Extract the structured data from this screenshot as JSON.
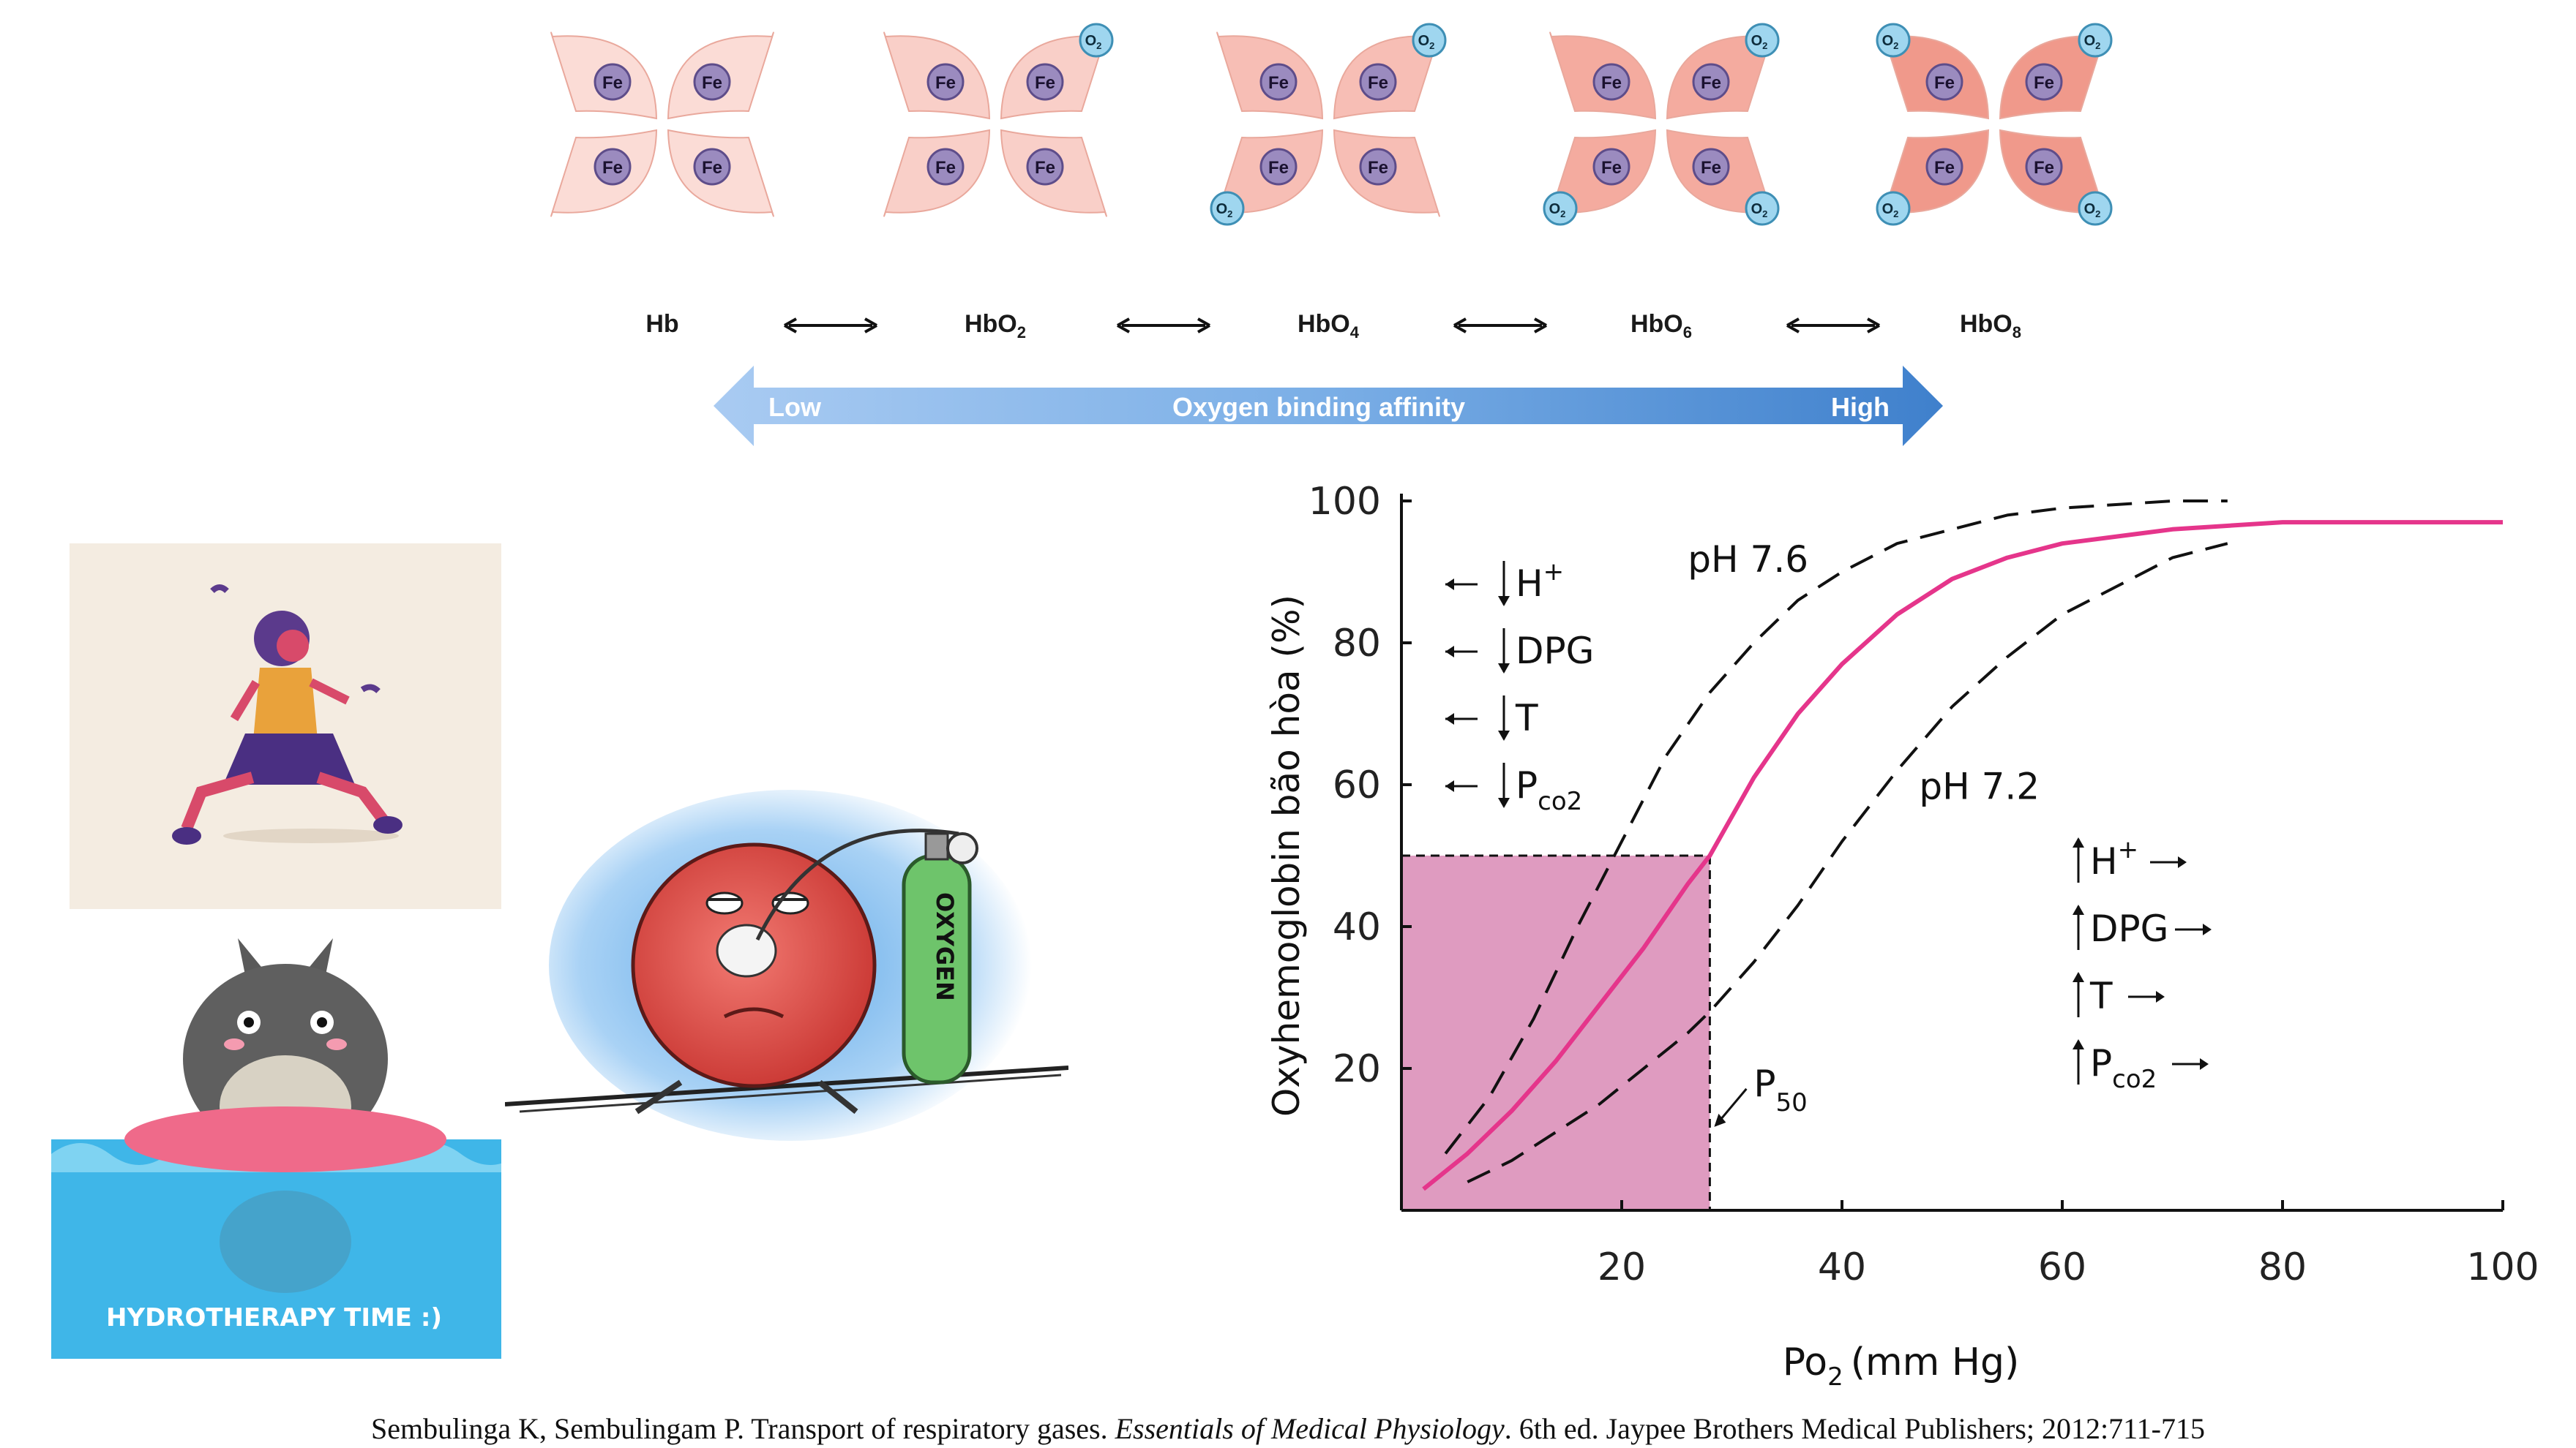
{
  "hemoglobin_states": [
    {
      "name": "Hb",
      "sub": "",
      "o2_count": 0
    },
    {
      "name": "HbO",
      "sub": "2",
      "o2_count": 1
    },
    {
      "name": "HbO",
      "sub": "4",
      "o2_count": 2
    },
    {
      "name": "HbO",
      "sub": "6",
      "o2_count": 3
    },
    {
      "name": "HbO",
      "sub": "8",
      "o2_count": 4
    }
  ],
  "subunit_label": "Fe",
  "oxygen_label": "O",
  "oxygen_sub": "2",
  "affinity": {
    "low": "Low",
    "title": "Oxygen binding affinity",
    "high": "High"
  },
  "hydrotherapy_text": "HYDROTHERAPY TIME :)",
  "oxygen_tank_label": "OXYGEN",
  "citation": {
    "pre": "Sembulinga K, Sembulingam P. Transport of respiratory gases. ",
    "journal": "Essentials of Medical Physiology",
    "post": ". 6th ed. Jaypee Brothers Medical Publishers; 2012:711-715"
  },
  "chart_data": {
    "type": "line",
    "ylabel": "Oxyhemoglobin bão hòa (%)",
    "xlabel_main": "Po",
    "xlabel_sub": "2",
    "xlabel_unit": "(mm Hg)",
    "x_ticks": [
      "20",
      "40",
      "60",
      "80",
      "100"
    ],
    "y_ticks": [
      "20",
      "40",
      "60",
      "80",
      "100"
    ],
    "xlim": [
      0,
      100
    ],
    "ylim": [
      0,
      100
    ],
    "series": [
      {
        "name": "pH 7.6",
        "style": "dashed",
        "color": "#111111",
        "x": [
          4,
          8,
          12,
          16,
          20,
          24,
          28,
          32,
          36,
          40,
          45,
          50,
          55,
          60,
          65,
          70,
          75
        ],
        "y": [
          8,
          16,
          27,
          40,
          52,
          64,
          73,
          80,
          86,
          90,
          94,
          96,
          98,
          99,
          99.5,
          100,
          100
        ]
      },
      {
        "name": "",
        "style": "solid",
        "color": "#e5358b",
        "x": [
          2,
          6,
          10,
          14,
          18,
          22,
          26,
          28,
          32,
          36,
          40,
          45,
          50,
          55,
          60,
          70,
          80,
          90,
          100
        ],
        "y": [
          3,
          8,
          14,
          21,
          29,
          37,
          46,
          50,
          61,
          70,
          77,
          84,
          89,
          92,
          94,
          96,
          97,
          97,
          97
        ]
      },
      {
        "name": "pH 7.2",
        "style": "dashed",
        "color": "#111111",
        "x": [
          6,
          10,
          14,
          18,
          22,
          26,
          28,
          32,
          36,
          40,
          45,
          50,
          55,
          60,
          65,
          70,
          75
        ],
        "y": [
          4,
          7,
          11,
          15,
          20,
          25,
          28,
          35,
          43,
          52,
          62,
          71,
          78,
          84,
          88,
          92,
          94
        ]
      }
    ],
    "p50": {
      "x": 28,
      "y": 50,
      "label": "P",
      "sub": "50"
    },
    "left_effects": [
      "H",
      "DPG",
      "T",
      "P"
    ],
    "right_effects": [
      "H",
      "DPG",
      "T",
      "P"
    ],
    "effect_superscript": "+",
    "pco2_sub": "co2"
  }
}
